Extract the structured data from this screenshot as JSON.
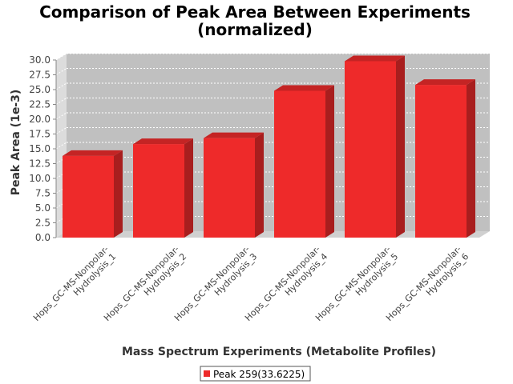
{
  "chart_data": {
    "type": "bar",
    "title_lines": [
      "Comparison of Peak Area Between Experiments",
      "(normalized)"
    ],
    "xlabel": "Mass Spectrum Experiments (Metabolite Profiles)",
    "ylabel": "Peak Area (1e-3)",
    "categories": [
      [
        "Hops_GC-MS-Nonpolar-",
        "Hydrolysis_1"
      ],
      [
        "Hops_GC-MS-Nonpolar-",
        "Hydrolysis_2"
      ],
      [
        "Hops_GC-MS-Nonpolar-",
        "Hydrolysis_3"
      ],
      [
        "Hops_GC-MS-Nonpolar-",
        "Hydrolysis_4"
      ],
      [
        "Hops_GC-MS-Nonpolar-",
        "Hydrolysis_5"
      ],
      [
        "Hops_GC-MS-Nonpolar-",
        "Hydrolysis_6"
      ]
    ],
    "series": [
      {
        "name": "Peak 259(33.6225)",
        "values": [
          13.8,
          15.8,
          16.8,
          24.8,
          29.8,
          25.8
        ],
        "color": "#ee2a2a"
      }
    ],
    "ylim": [
      0,
      30
    ],
    "yticks": [
      "0.0",
      "2.5",
      "5.0",
      "7.5",
      "10.0",
      "12.5",
      "15.0",
      "17.5",
      "20.0",
      "22.5",
      "25.0",
      "27.5",
      "30.0"
    ],
    "grid": true,
    "legend_position": "bottom",
    "plot_background": "#c0c0c0"
  }
}
